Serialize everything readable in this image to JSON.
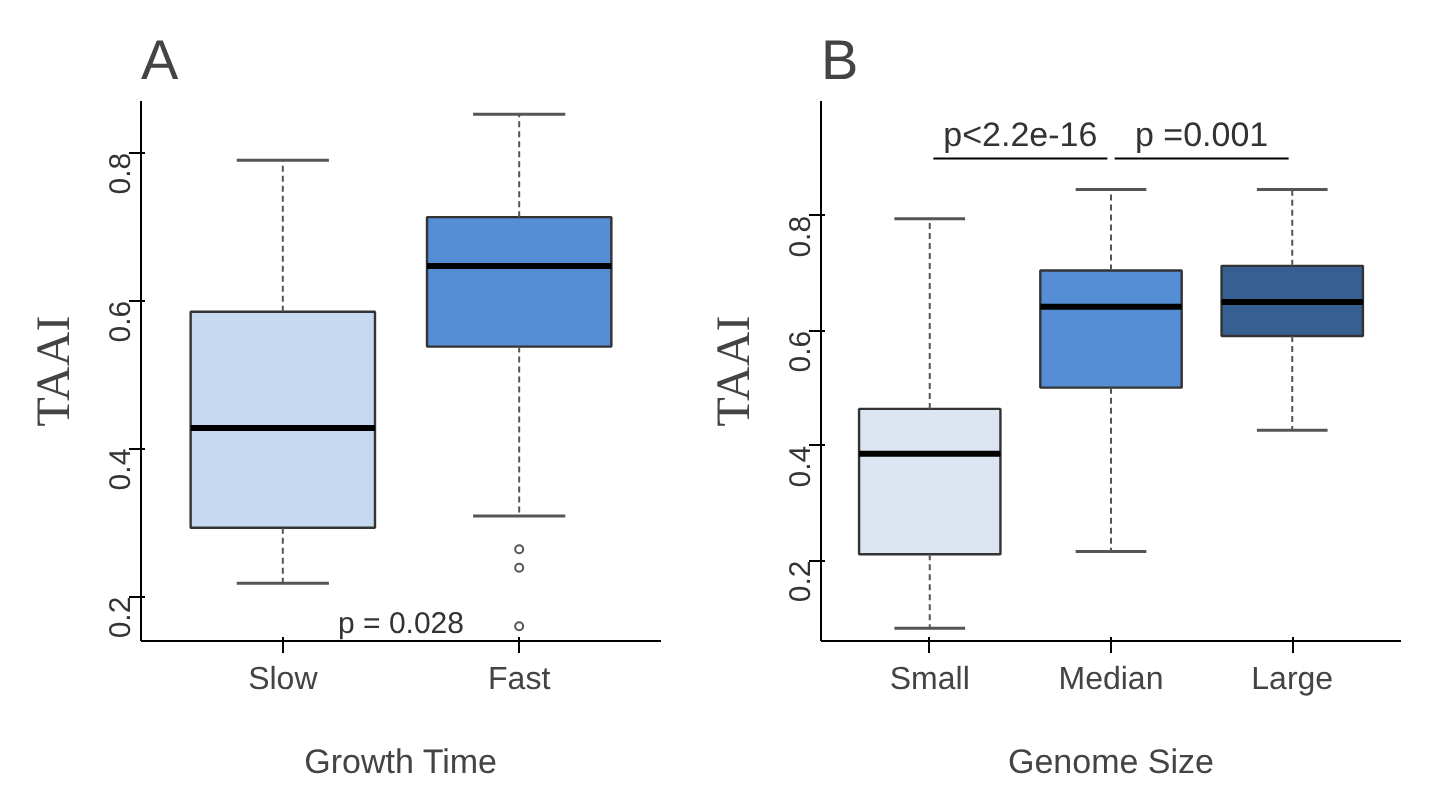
{
  "chart_data": [
    {
      "type": "box",
      "title": "A",
      "xlabel": "Growth Time",
      "ylabel": "TAAI",
      "categories": [
        "Slow",
        "Fast"
      ],
      "colors": [
        "#c6d9f0",
        "#558ed5"
      ],
      "ylim": [
        0.14,
        0.87
      ],
      "yticks": [
        0.2,
        0.4,
        0.6,
        0.8
      ],
      "boxes": [
        {
          "low": 0.218,
          "q1": 0.293,
          "median": 0.428,
          "q3": 0.585,
          "high": 0.79
        },
        {
          "low": 0.309,
          "q1": 0.538,
          "median": 0.647,
          "q3": 0.713,
          "high": 0.852,
          "outliers": [
            0.264,
            0.239,
            0.16
          ]
        }
      ],
      "annotations": [
        "p = 0.028"
      ],
      "grid": false
    },
    {
      "type": "box",
      "title": "B",
      "xlabel": "Genome Size",
      "ylabel": "TAAI",
      "categories": [
        "Small",
        "Median",
        "Large"
      ],
      "colors": [
        "#dce6f2",
        "#558ed5",
        "#376092"
      ],
      "ylim": [
        0.06,
        1.0
      ],
      "yticks": [
        0.2,
        0.4,
        0.6,
        0.8
      ],
      "boxes": [
        {
          "low": 0.082,
          "q1": 0.211,
          "median": 0.386,
          "q3": 0.464,
          "high": 0.795
        },
        {
          "low": 0.216,
          "q1": 0.501,
          "median": 0.642,
          "q3": 0.705,
          "high": 0.846
        },
        {
          "low": 0.427,
          "q1": 0.591,
          "median": 0.65,
          "q3": 0.713,
          "high": 0.846
        }
      ],
      "annotations": [
        "p<2.2e-16",
        "p =0.001"
      ],
      "grid": false
    }
  ]
}
